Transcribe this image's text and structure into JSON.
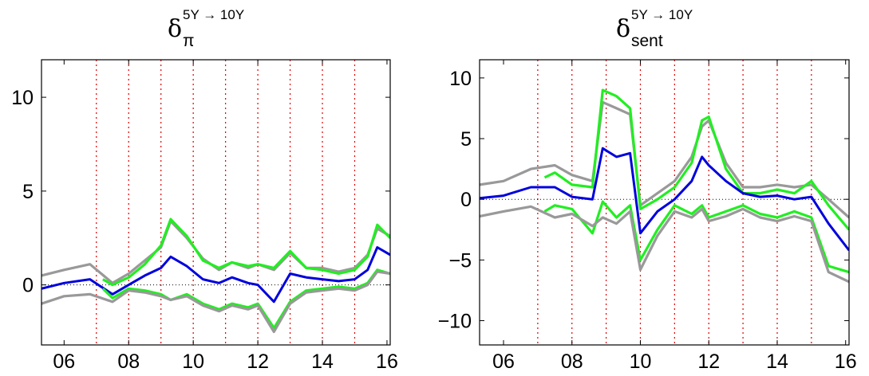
{
  "chart_data": [
    {
      "type": "line",
      "title": {
        "symbol": "δ",
        "subscript": "π",
        "superscript": "5Y → 10Y"
      },
      "xlim": [
        2005.3,
        2016.1
      ],
      "ylim": [
        -3.2,
        12.0
      ],
      "xticks": [
        {
          "v": 2006,
          "label": "06"
        },
        {
          "v": 2008,
          "label": "08"
        },
        {
          "v": 2010,
          "label": "10"
        },
        {
          "v": 2012,
          "label": "12"
        },
        {
          "v": 2014,
          "label": "14"
        },
        {
          "v": 2016,
          "label": "16"
        }
      ],
      "yticks": [
        {
          "v": 0,
          "label": "0"
        },
        {
          "v": 5,
          "label": "5"
        },
        {
          "v": 10,
          "label": "10"
        }
      ],
      "vlines": [
        2007,
        2008,
        2009,
        2010,
        2011,
        2012,
        2013,
        2014,
        2015
      ],
      "zero_line": true,
      "series": [
        {
          "role": "gray-upper",
          "color": "#999999",
          "x": [
            2005.3,
            2006.0,
            2006.8,
            2007.5,
            2008.0,
            2008.5,
            2009.0,
            2009.3,
            2009.8,
            2010.3,
            2010.8,
            2011.2,
            2011.7,
            2012.0,
            2012.5,
            2013.0,
            2013.5,
            2014.0,
            2014.5,
            2015.0,
            2015.4,
            2015.7,
            2016.1
          ],
          "y": [
            0.5,
            0.8,
            1.1,
            0.1,
            0.6,
            1.3,
            2.0,
            3.4,
            2.5,
            1.4,
            0.8,
            1.2,
            0.9,
            1.1,
            0.8,
            1.7,
            0.9,
            0.9,
            0.7,
            0.9,
            1.6,
            3.0,
            2.6
          ]
        },
        {
          "role": "green-upper",
          "color": "#22ee22",
          "x": [
            2007.2,
            2007.5,
            2008.0,
            2008.5,
            2009.0,
            2009.3,
            2009.8,
            2010.3,
            2010.8,
            2011.2,
            2011.7,
            2012.0,
            2012.5,
            2013.0,
            2013.5,
            2014.0,
            2014.5,
            2015.0,
            2015.4,
            2015.7,
            2016.1
          ],
          "y": [
            0.3,
            0.0,
            0.4,
            1.1,
            2.1,
            3.5,
            2.6,
            1.3,
            0.9,
            1.2,
            1.0,
            1.1,
            0.9,
            1.8,
            0.9,
            0.8,
            0.6,
            0.8,
            1.5,
            3.2,
            2.5
          ]
        },
        {
          "role": "estimate",
          "color": "#0000dd",
          "x": [
            2005.3,
            2006.0,
            2006.8,
            2007.5,
            2008.0,
            2008.5,
            2009.0,
            2009.3,
            2009.8,
            2010.3,
            2010.8,
            2011.2,
            2011.7,
            2012.0,
            2012.5,
            2013.0,
            2013.5,
            2014.0,
            2014.5,
            2015.0,
            2015.4,
            2015.7,
            2016.1
          ],
          "y": [
            -0.2,
            0.1,
            0.3,
            -0.5,
            0.0,
            0.5,
            0.9,
            1.5,
            1.0,
            0.3,
            0.1,
            0.4,
            0.1,
            0.0,
            -0.9,
            0.6,
            0.4,
            0.3,
            0.2,
            0.3,
            0.8,
            2.0,
            1.6
          ]
        },
        {
          "role": "green-lower",
          "color": "#22ee22",
          "x": [
            2007.2,
            2007.5,
            2008.0,
            2008.5,
            2009.0,
            2009.3,
            2009.8,
            2010.3,
            2010.8,
            2011.2,
            2011.7,
            2012.0,
            2012.5,
            2013.0,
            2013.5,
            2014.0,
            2014.5,
            2015.0,
            2015.4,
            2015.7,
            2016.1
          ],
          "y": [
            -0.2,
            -0.7,
            -0.2,
            -0.3,
            -0.5,
            -0.8,
            -0.5,
            -1.0,
            -1.3,
            -1.0,
            -1.2,
            -1.0,
            -2.3,
            -0.9,
            -0.3,
            -0.2,
            -0.1,
            -0.2,
            0.1,
            0.8,
            0.6
          ]
        },
        {
          "role": "gray-lower",
          "color": "#999999",
          "x": [
            2005.3,
            2006.0,
            2006.8,
            2007.5,
            2008.0,
            2008.5,
            2009.0,
            2009.3,
            2009.8,
            2010.3,
            2010.8,
            2011.2,
            2011.7,
            2012.0,
            2012.5,
            2013.0,
            2013.5,
            2014.0,
            2014.5,
            2015.0,
            2015.4,
            2015.7,
            2016.1
          ],
          "y": [
            -1.0,
            -0.6,
            -0.5,
            -0.9,
            -0.3,
            -0.4,
            -0.6,
            -0.8,
            -0.6,
            -1.1,
            -1.4,
            -1.1,
            -1.3,
            -1.1,
            -2.5,
            -1.0,
            -0.4,
            -0.3,
            -0.2,
            -0.3,
            0.0,
            0.7,
            0.6
          ]
        }
      ]
    },
    {
      "type": "line",
      "title": {
        "symbol": "δ",
        "subscript": "sent",
        "superscript": "5Y → 10Y"
      },
      "xlim": [
        2005.3,
        2016.1
      ],
      "ylim": [
        -12.0,
        11.5
      ],
      "xticks": [
        {
          "v": 2006,
          "label": "06"
        },
        {
          "v": 2008,
          "label": "08"
        },
        {
          "v": 2010,
          "label": "10"
        },
        {
          "v": 2012,
          "label": "12"
        },
        {
          "v": 2014,
          "label": "14"
        },
        {
          "v": 2016,
          "label": "16"
        }
      ],
      "yticks": [
        {
          "v": -10,
          "label": "−10"
        },
        {
          "v": -5,
          "label": "−5"
        },
        {
          "v": 0,
          "label": "0"
        },
        {
          "v": 5,
          "label": "5"
        },
        {
          "v": 10,
          "label": "10"
        }
      ],
      "vlines": [
        2007,
        2008,
        2009,
        2010,
        2011,
        2012,
        2013,
        2014,
        2015
      ],
      "zero_line": true,
      "series": [
        {
          "role": "gray-upper",
          "color": "#999999",
          "x": [
            2005.3,
            2006.0,
            2006.8,
            2007.5,
            2008.0,
            2008.6,
            2008.9,
            2009.3,
            2009.7,
            2010.0,
            2010.5,
            2011.0,
            2011.5,
            2011.8,
            2012.0,
            2012.5,
            2013.0,
            2013.5,
            2014.0,
            2014.5,
            2015.0,
            2015.5,
            2016.1
          ],
          "y": [
            1.2,
            1.5,
            2.5,
            2.8,
            2.0,
            1.5,
            8.0,
            7.5,
            7.0,
            -0.5,
            0.5,
            1.5,
            3.5,
            6.0,
            6.5,
            3.0,
            1.0,
            1.0,
            1.2,
            1.0,
            1.2,
            0.0,
            -1.5
          ]
        },
        {
          "role": "green-upper",
          "color": "#22ee22",
          "x": [
            2007.2,
            2007.5,
            2008.0,
            2008.6,
            2008.9,
            2009.3,
            2009.7,
            2010.0,
            2010.5,
            2011.0,
            2011.5,
            2011.8,
            2012.0,
            2012.5,
            2013.0,
            2013.5,
            2014.0,
            2014.5,
            2015.0,
            2015.5,
            2016.1
          ],
          "y": [
            1.8,
            2.2,
            1.2,
            1.0,
            9.0,
            8.5,
            7.5,
            -0.8,
            0.0,
            1.0,
            3.0,
            6.5,
            6.8,
            2.5,
            0.5,
            0.5,
            0.8,
            0.5,
            1.5,
            -0.5,
            -2.5
          ]
        },
        {
          "role": "estimate",
          "color": "#0000dd",
          "x": [
            2005.3,
            2006.0,
            2006.8,
            2007.5,
            2008.0,
            2008.6,
            2008.9,
            2009.3,
            2009.7,
            2010.0,
            2010.5,
            2011.0,
            2011.5,
            2011.8,
            2012.0,
            2012.5,
            2013.0,
            2013.5,
            2014.0,
            2014.5,
            2015.0,
            2015.5,
            2016.1
          ],
          "y": [
            0.1,
            0.3,
            1.0,
            1.0,
            0.2,
            0.0,
            4.2,
            3.5,
            3.8,
            -2.8,
            -1.0,
            0.0,
            1.5,
            3.5,
            2.8,
            1.5,
            0.5,
            0.2,
            0.3,
            0.0,
            0.2,
            -2.0,
            -4.2
          ]
        },
        {
          "role": "green-lower",
          "color": "#22ee22",
          "x": [
            2007.2,
            2007.5,
            2008.0,
            2008.6,
            2008.9,
            2009.3,
            2009.7,
            2010.0,
            2010.5,
            2011.0,
            2011.5,
            2011.8,
            2012.0,
            2012.5,
            2013.0,
            2013.5,
            2014.0,
            2014.5,
            2015.0,
            2015.5,
            2016.1
          ],
          "y": [
            -1.0,
            -0.5,
            -0.8,
            -2.8,
            -0.2,
            -1.5,
            -0.5,
            -5.0,
            -2.5,
            -0.5,
            -1.2,
            -0.5,
            -1.5,
            -1.0,
            -0.5,
            -1.2,
            -1.5,
            -1.0,
            -1.5,
            -5.5,
            -6.0
          ]
        },
        {
          "role": "gray-lower",
          "color": "#999999",
          "x": [
            2005.3,
            2006.0,
            2006.8,
            2007.5,
            2008.0,
            2008.6,
            2008.9,
            2009.3,
            2009.7,
            2010.0,
            2010.5,
            2011.0,
            2011.5,
            2011.8,
            2012.0,
            2012.5,
            2013.0,
            2013.5,
            2014.0,
            2014.5,
            2015.0,
            2015.5,
            2016.1
          ],
          "y": [
            -1.4,
            -1.0,
            -0.6,
            -1.5,
            -1.2,
            -2.2,
            -1.5,
            -2.0,
            -1.0,
            -5.8,
            -3.0,
            -1.0,
            -1.5,
            -0.8,
            -1.8,
            -1.4,
            -0.8,
            -1.5,
            -1.8,
            -1.4,
            -1.8,
            -6.0,
            -6.8
          ]
        }
      ]
    }
  ]
}
